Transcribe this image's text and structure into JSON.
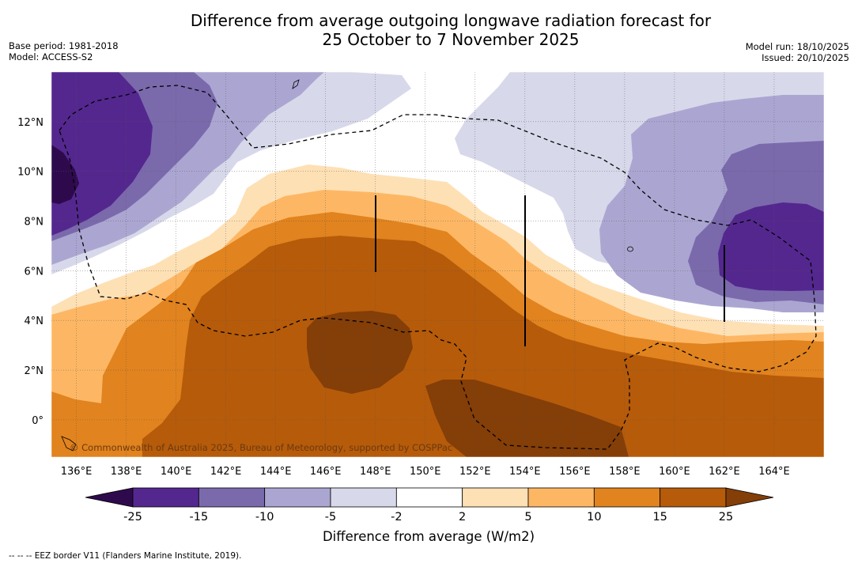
{
  "header": {
    "title_line1": "Difference from average outgoing longwave radiation forecast for",
    "title_line2": "25 October to 7 November 2025",
    "base_period": "Base period: 1981-2018",
    "model": "Model: ACCESS-S2",
    "model_run": "Model run: 18/10/2025",
    "issued": "Issued: 20/10/2025"
  },
  "map": {
    "longitude_ticks": [
      "136°E",
      "138°E",
      "140°E",
      "142°E",
      "144°E",
      "146°E",
      "148°E",
      "150°E",
      "152°E",
      "154°E",
      "156°E",
      "158°E",
      "160°E",
      "162°E",
      "164°E"
    ],
    "latitude_ticks": [
      "12°N",
      "10°N",
      "8°N",
      "6°N",
      "4°N",
      "2°N",
      "0°"
    ],
    "lon_range": [
      135.0,
      166.0
    ],
    "lat_range": [
      -1.5,
      14.0
    ],
    "copyright": "© Commonwealth of Australia 2025, Bureau of Meteorology, supported by COSPPac"
  },
  "colorbar": {
    "title": "Difference from average (W/m2)",
    "levels": [
      "-25",
      "-15",
      "-10",
      "-5",
      "-2",
      "2",
      "5",
      "10",
      "15",
      "25"
    ],
    "colors": [
      "#2e0a4d",
      "#54278f",
      "#7a6aac",
      "#aba6d1",
      "#d8d8eb",
      "#ffffff",
      "#fee0b5",
      "#fdb764",
      "#e1831e",
      "#b65b0a",
      "#843e08"
    ]
  },
  "footer": {
    "legend_text": "--  --  -- EEZ border V11 (Flanders Marine Institute, 2019)."
  }
}
